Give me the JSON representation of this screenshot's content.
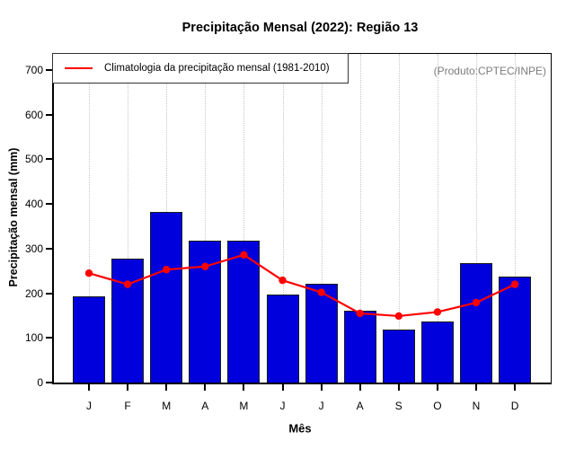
{
  "title": "Precipitação Mensal (2022): Região 13",
  "annotation": "(Produto:CPTEC/INPE)",
  "legend": {
    "label": "Climatologia da precipitação mensal (1981-2010)"
  },
  "colors": {
    "bar_fill": "#0000dd",
    "bar_border": "#1a1a1a",
    "climatology_line": "#ff0000",
    "gridline": "#c6c6c6",
    "annotation_text": "#7d7d7d",
    "axis": "#000000"
  },
  "chart_data": {
    "type": "bar",
    "title": "Precipitação Mensal (2022): Região 13",
    "xlabel": "Mês",
    "ylabel": "Precipitação mensal (mm)",
    "categories": [
      "J",
      "F",
      "M",
      "A",
      "M",
      "J",
      "J",
      "A",
      "S",
      "O",
      "N",
      "D"
    ],
    "series": [
      {
        "name": "Precipitação mensal 2022",
        "type": "bar",
        "values": [
          194,
          277,
          382,
          317,
          318,
          197,
          222,
          160,
          119,
          137,
          267,
          238
        ]
      },
      {
        "name": "Climatologia da precipitação mensal (1981-2010)",
        "type": "line",
        "values": [
          245,
          220,
          253,
          260,
          286,
          229,
          202,
          155,
          149,
          158,
          179,
          220
        ]
      }
    ],
    "ylim": [
      0,
      700
    ],
    "yticks": [
      0,
      100,
      200,
      300,
      400,
      500,
      600,
      700
    ],
    "grid": "vertical-dotted",
    "legend_position": "top-left"
  }
}
